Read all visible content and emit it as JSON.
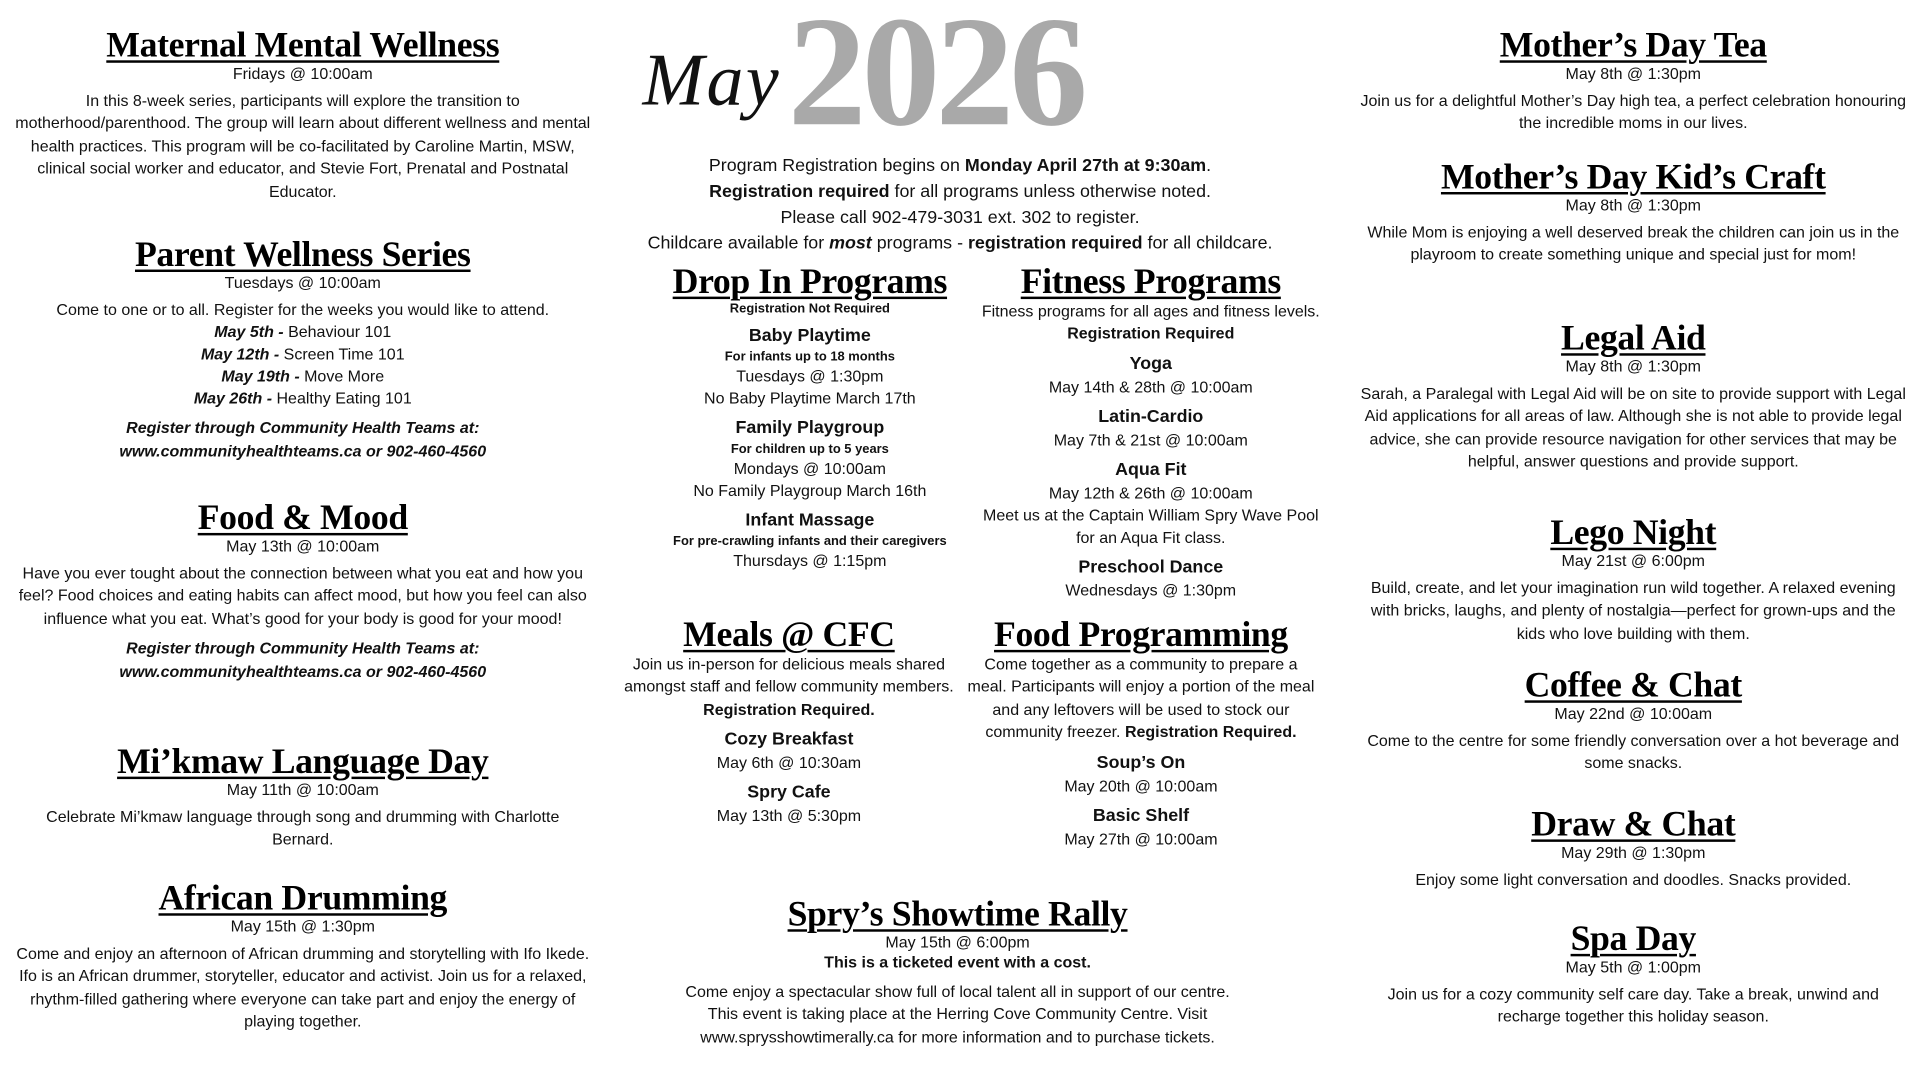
{
  "header": {
    "year": "2026",
    "month_script": "May",
    "intro": [
      [
        {
          "t": "Program Registration begins on "
        },
        {
          "t": "Monday April 27th at 9:30am",
          "b": true
        },
        {
          "t": "."
        }
      ],
      [
        {
          "t": "Registration required",
          "b": true
        },
        {
          "t": " for all programs unless otherwise noted."
        }
      ],
      [
        {
          "t": "Please call 902-479-3031 ext. 302 to register."
        }
      ],
      [
        {
          "t": "Childcare available for "
        },
        {
          "t": "most",
          "b": true,
          "i": true
        },
        {
          "t": " programs - "
        },
        {
          "t": "registration required",
          "b": true
        },
        {
          "t": " for all childcare."
        }
      ]
    ]
  },
  "sections": [
    {
      "id": "maternal",
      "title": "Maternal Mental Wellness",
      "date": "Fridays @ 10:00am",
      "content": [
        {
          "type": "p",
          "runs": [
            {
              "t": "In this 8-week series, participants will explore the transition to motherhood/parenthood. The group will learn about different wellness and mental health practices. This program will be co-facilitated by Caroline Martin, MSW, clinical social worker and educator, and Stevie Fort, Prenatal and Postnatal Educator."
            }
          ]
        }
      ]
    },
    {
      "id": "parent",
      "title": "Parent Wellness Series",
      "date": "Tuesdays @ 10:00am",
      "content": [
        {
          "type": "p",
          "runs": [
            {
              "t": "Come to one or to all. Register for the weeks  you would like to attend."
            }
          ]
        },
        {
          "type": "line",
          "runs": [
            {
              "t": "May 5th - ",
              "b": true,
              "i": true
            },
            {
              "t": "Behaviour 101"
            }
          ]
        },
        {
          "type": "line",
          "runs": [
            {
              "t": "May 12th - ",
              "b": true,
              "i": true
            },
            {
              "t": "Screen Time 101"
            }
          ]
        },
        {
          "type": "line",
          "runs": [
            {
              "t": "May 19th - ",
              "b": true,
              "i": true
            },
            {
              "t": "Move More"
            }
          ]
        },
        {
          "type": "line",
          "runs": [
            {
              "t": "May 26th - ",
              "b": true,
              "i": true
            },
            {
              "t": "Healthy Eating 101"
            }
          ]
        },
        {
          "type": "pgap",
          "runs": [
            {
              "t": "Register through Community Health Teams at: www.communityhealthteams.ca or 902-460-4560",
              "b": true,
              "i": true
            }
          ]
        }
      ]
    },
    {
      "id": "food-mood",
      "title": "Food & Mood",
      "date": "May 13th @ 10:00am",
      "content": [
        {
          "type": "p",
          "runs": [
            {
              "t": "Have you ever tought about the connection between what you eat and how you feel? Food choices and eating habits can affect mood, but how you feel can also influence what you eat. What’s good for your body is good for your mood!"
            }
          ]
        },
        {
          "type": "pgap",
          "runs": [
            {
              "t": "Register through Community Health Teams at: www.communityhealthteams.ca or 902-460-4560",
              "b": true,
              "i": true
            }
          ]
        }
      ]
    },
    {
      "id": "mikmaw",
      "title": "Mi’kmaw Language Day",
      "date": "May 11th @ 10:00am",
      "content": [
        {
          "type": "p",
          "runs": [
            {
              "t": "Celebrate Mi’kmaw language through song and drumming with Charlotte Bernard."
            }
          ]
        }
      ]
    },
    {
      "id": "drumming",
      "title": "African Drumming",
      "date": "May 15th @ 1:30pm",
      "content": [
        {
          "type": "p",
          "runs": [
            {
              "t": "Come and enjoy an afternoon of African drumming and storytelling with Ifo Ikede. Ifo is an African drummer, storyteller, educator and activist. Join us for a relaxed, rhythm-filled gathering where everyone can take part and enjoy the energy of playing together."
            }
          ]
        }
      ]
    },
    {
      "id": "dropin",
      "title": "Drop In Programs",
      "date": "",
      "content": [
        {
          "type": "small",
          "runs": [
            {
              "t": "Registration Not Required"
            }
          ]
        },
        {
          "type": "h",
          "runs": [
            {
              "t": "Baby Playtime"
            }
          ]
        },
        {
          "type": "small",
          "runs": [
            {
              "t": "For infants up to 18 months"
            }
          ]
        },
        {
          "type": "line",
          "runs": [
            {
              "t": "Tuesdays @ 1:30pm"
            }
          ]
        },
        {
          "type": "line",
          "runs": [
            {
              "t": "No Baby Playtime March 17th"
            }
          ]
        },
        {
          "type": "h",
          "runs": [
            {
              "t": "Family Playgroup"
            }
          ]
        },
        {
          "type": "small",
          "runs": [
            {
              "t": "For children up to 5 years"
            }
          ]
        },
        {
          "type": "line",
          "runs": [
            {
              "t": "Mondays @ 10:00am"
            }
          ]
        },
        {
          "type": "line",
          "runs": [
            {
              "t": "No Family Playgroup March 16th"
            }
          ]
        },
        {
          "type": "h",
          "runs": [
            {
              "t": "Infant Massage"
            }
          ]
        },
        {
          "type": "small",
          "runs": [
            {
              "t": "For pre-crawling infants and their caregivers"
            }
          ]
        },
        {
          "type": "line",
          "runs": [
            {
              "t": "Thursdays @ 1:15pm"
            }
          ]
        }
      ]
    },
    {
      "id": "fitness",
      "title": "Fitness Programs",
      "date": "",
      "content": [
        {
          "type": "p",
          "runs": [
            {
              "t": "Fitness programs for all ages and fitness levels. "
            },
            {
              "t": "Registration Required",
              "b": true
            }
          ]
        },
        {
          "type": "h",
          "runs": [
            {
              "t": "Yoga"
            }
          ]
        },
        {
          "type": "line",
          "runs": [
            {
              "t": "May 14th & 28th @ 10:00am"
            }
          ]
        },
        {
          "type": "h",
          "runs": [
            {
              "t": "Latin-Cardio"
            }
          ]
        },
        {
          "type": "line",
          "runs": [
            {
              "t": "May 7th & 21st @ 10:00am"
            }
          ]
        },
        {
          "type": "h",
          "runs": [
            {
              "t": "Aqua Fit"
            }
          ]
        },
        {
          "type": "line",
          "runs": [
            {
              "t": "May 12th & 26th @ 10:00am"
            }
          ]
        },
        {
          "type": "line",
          "runs": [
            {
              "t": "Meet us at the Captain William Spry Wave Pool for an Aqua Fit class."
            }
          ]
        },
        {
          "type": "h",
          "runs": [
            {
              "t": "Preschool Dance"
            }
          ]
        },
        {
          "type": "line",
          "runs": [
            {
              "t": "Wednesdays @ 1:30pm"
            }
          ]
        }
      ]
    },
    {
      "id": "meals",
      "title": "Meals @ CFC",
      "date": "",
      "content": [
        {
          "type": "p",
          "runs": [
            {
              "t": "Join us in-person for delicious meals shared amongst staff and fellow community members. "
            },
            {
              "t": "Registration Required.",
              "b": true
            }
          ]
        },
        {
          "type": "h",
          "runs": [
            {
              "t": "Cozy Breakfast"
            }
          ]
        },
        {
          "type": "line",
          "runs": [
            {
              "t": "May 6th @ 10:30am"
            }
          ]
        },
        {
          "type": "h",
          "runs": [
            {
              "t": "Spry Cafe"
            }
          ]
        },
        {
          "type": "line",
          "runs": [
            {
              "t": "May 13th @ 5:30pm"
            }
          ]
        }
      ]
    },
    {
      "id": "foodprog",
      "title": "Food Programming",
      "date": "",
      "content": [
        {
          "type": "p",
          "runs": [
            {
              "t": "Come together as a community to prepare a meal. Participants will enjoy a portion of the meal and any leftovers will be used to stock our community freezer. "
            },
            {
              "t": "Registration Required.",
              "b": true
            }
          ]
        },
        {
          "type": "h",
          "runs": [
            {
              "t": "Soup’s On"
            }
          ]
        },
        {
          "type": "line",
          "runs": [
            {
              "t": "May 20th  @ 10:00am"
            }
          ]
        },
        {
          "type": "h",
          "runs": [
            {
              "t": "Basic Shelf"
            }
          ]
        },
        {
          "type": "line",
          "runs": [
            {
              "t": "May 27th @ 10:00am"
            }
          ]
        }
      ]
    },
    {
      "id": "spry",
      "title": "Spry’s Showtime Rally",
      "date": "May 15th @ 6:00pm",
      "content": [
        {
          "type": "line",
          "runs": [
            {
              "t": "This is a ticketed event with a cost.",
              "b": true
            }
          ]
        },
        {
          "type": "pgap",
          "runs": [
            {
              "t": "Come enjoy a spectacular show full of local talent all in support of our centre. This event is taking place at the Herring Cove Community Centre. Visit www.sprysshowtimerally.ca for more information and to purchase tickets."
            }
          ]
        }
      ]
    },
    {
      "id": "tea",
      "title": "Mother’s Day Tea",
      "date": "May 8th @ 1:30pm",
      "content": [
        {
          "type": "pgap",
          "runs": [
            {
              "t": "Join us for a delightful Mother’s Day high tea, a perfect celebration honouring the incredible moms in our lives."
            }
          ]
        }
      ]
    },
    {
      "id": "craft",
      "title": "Mother’s Day Kid’s Craft",
      "date": "May 8th @ 1:30pm",
      "content": [
        {
          "type": "p",
          "runs": [
            {
              "t": "While Mom is enjoying a well deserved break the children can join us in the playroom to create something unique and special just for mom!"
            }
          ]
        }
      ]
    },
    {
      "id": "legal",
      "title": "Legal Aid",
      "date": "May 8th @ 1:30pm",
      "content": [
        {
          "type": "pgap",
          "runs": [
            {
              "t": "Sarah, a Paralegal with Legal Aid will be on site to provide support with Legal Aid applications for all areas of law. Although she is not able to provide legal advice, she can provide resource navigation for other services that may be helpful, answer questions and provide support."
            }
          ]
        }
      ]
    },
    {
      "id": "lego",
      "title": "Lego Night",
      "date": "May 21st @ 6:00pm",
      "content": [
        {
          "type": "p",
          "runs": [
            {
              "t": "Build, create, and let your imagination run wild together. A relaxed evening with bricks, laughs, and plenty of nostalgia—perfect for grown-ups and the kids who love building with them."
            }
          ]
        }
      ]
    },
    {
      "id": "coffee",
      "title": "Coffee & Chat",
      "date": "May 22nd @ 10:00am",
      "content": [
        {
          "type": "p",
          "runs": [
            {
              "t": "Come to the centre for some friendly conversation over a hot beverage and some snacks."
            }
          ]
        }
      ]
    },
    {
      "id": "draw",
      "title": "Draw & Chat",
      "date": "May 29th @ 1:30pm",
      "content": [
        {
          "type": "p",
          "runs": [
            {
              "t": "Enjoy some light conversation and doodles. Snacks provided."
            }
          ]
        }
      ]
    },
    {
      "id": "spa",
      "title": "Spa Day",
      "date": "May 5th @ 1:00pm",
      "content": [
        {
          "type": "p",
          "runs": [
            {
              "t": "Join us for a cozy community self care day. Take a break, unwind and recharge together this holiday season."
            }
          ]
        }
      ]
    }
  ]
}
